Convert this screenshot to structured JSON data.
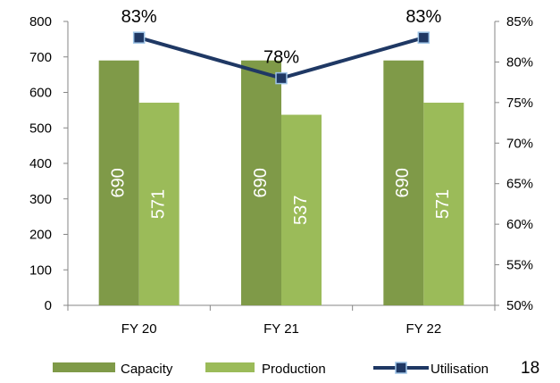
{
  "chart_data": {
    "type": "bar",
    "categories": [
      "FY 20",
      "FY 21",
      "FY 22"
    ],
    "series": [
      {
        "name": "Capacity",
        "kind": "bar",
        "axis": "left",
        "color": "#7f9a48",
        "values": [
          690,
          690,
          690
        ]
      },
      {
        "name": "Production",
        "kind": "bar",
        "axis": "left",
        "color": "#9bbb59",
        "values": [
          571,
          537,
          571
        ]
      },
      {
        "name": "Utilisation",
        "kind": "line",
        "axis": "right",
        "color": "#1f3864",
        "values": [
          83,
          78,
          83
        ]
      }
    ],
    "bar_labels": [
      [
        "690",
        "690",
        "690"
      ],
      [
        "571",
        "537",
        "571"
      ]
    ],
    "line_labels": [
      "83%",
      "78%",
      "83%"
    ],
    "y_left": {
      "min": 0,
      "max": 800,
      "ticks": [
        "0",
        "100",
        "200",
        "300",
        "400",
        "500",
        "600",
        "700",
        "800"
      ]
    },
    "y_right": {
      "min": 50,
      "max": 85,
      "ticks": [
        "50%",
        "55%",
        "60%",
        "65%",
        "70%",
        "75%",
        "80%",
        "85%"
      ]
    },
    "grid": false,
    "legend_position": "bottom"
  },
  "page_number": "18"
}
